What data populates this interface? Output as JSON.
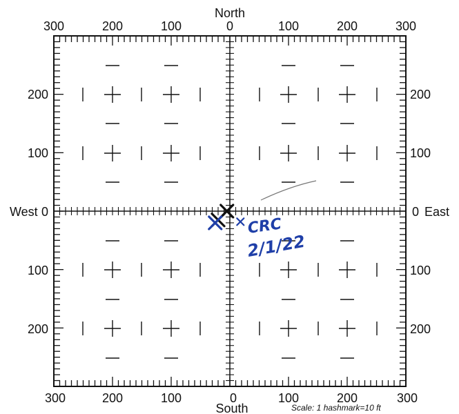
{
  "compass": {
    "north": "North",
    "south": "South",
    "west": "West",
    "east": "East"
  },
  "top_ticks": [
    "300",
    "200",
    "100",
    "0",
    "100",
    "200",
    "300"
  ],
  "bottom_ticks": [
    "300",
    "200",
    "100",
    "0",
    "100",
    "200",
    "300"
  ],
  "left_ticks": [
    "200",
    "100",
    "0",
    "100",
    "200"
  ],
  "right_ticks": [
    "200",
    "100",
    "0",
    "100",
    "200"
  ],
  "scale_note": "Scale:  1 hashmark=10 ft",
  "annotation": {
    "initials": "CRC",
    "date": "2/1/22",
    "ink_color": "#1f3fa8"
  },
  "colors": {
    "grid": "#111111",
    "background": "#ffffff"
  },
  "markers": {
    "plotted_points": [
      {
        "x_ft": -5,
        "y_ft": 0,
        "symbol": "X",
        "color": "#111111"
      },
      {
        "x_ft": -20,
        "y_ft": -15,
        "symbol": "X",
        "color": "#111111"
      },
      {
        "x_ft": -25,
        "y_ft": -20,
        "symbol": "X",
        "color": "#1f3fa8"
      },
      {
        "x_ft": 18,
        "y_ft": -18,
        "symbol": "x",
        "color": "#1f3fa8"
      }
    ]
  }
}
